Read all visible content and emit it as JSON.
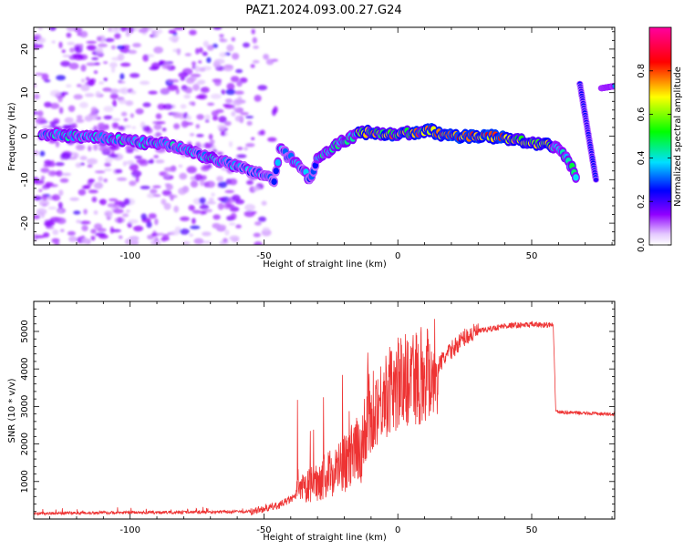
{
  "figure": {
    "title": "PAZ1.2024.093.00.27.G24"
  },
  "chart_data": [
    {
      "type": "heatmap",
      "xlabel": "Height of straight line (km)",
      "ylabel": "Frequency (Hz)",
      "xlim": [
        -136,
        81
      ],
      "ylim": [
        -25,
        25
      ],
      "x_ticks": [
        -100,
        -50,
        0,
        50
      ],
      "y_ticks": [
        -20,
        -10,
        0,
        10,
        20
      ],
      "grid": false,
      "colorbar": {
        "label": "Normalized spectral amplitude",
        "range": [
          0,
          1
        ],
        "ticks": [
          0.0,
          0.2,
          0.4,
          0.6,
          0.8
        ],
        "colormap": [
          "#ffffff",
          "#9000ff",
          "#0000ff",
          "#00e0ff",
          "#00ff00",
          "#ffff00",
          "#ff0000",
          "#ff00a0"
        ]
      },
      "ridge": {
        "x": [
          -133,
          -120,
          -110,
          -100,
          -95,
          -85,
          -80,
          -75,
          -70,
          -65,
          -60,
          -55,
          -50,
          -46,
          -44,
          -40,
          -35,
          -33,
          -30,
          -25,
          -20,
          -15,
          -10,
          -5,
          0,
          5,
          10,
          12,
          15,
          20,
          30,
          40,
          45,
          50,
          55,
          60,
          63,
          65,
          67
        ],
        "y": [
          0.5,
          0,
          -0.5,
          -1,
          -1.5,
          -2,
          -3,
          -4,
          -5,
          -6,
          -7,
          -8,
          -9,
          -10,
          -3,
          -5,
          -8,
          -10,
          -5,
          -3,
          -1,
          0.5,
          1,
          0.5,
          0.5,
          0.8,
          1,
          1.5,
          0.5,
          0,
          0,
          -0.3,
          -1,
          -1.5,
          -2,
          -3,
          -5,
          -7,
          -10
        ]
      },
      "streaks": [
        {
          "x": [
            68,
            74
          ],
          "y": [
            12,
            -10
          ]
        },
        {
          "x": [
            76,
            81
          ],
          "y": [
            11,
            11.5
          ]
        }
      ]
    },
    {
      "type": "line",
      "xlabel": "Height of straight line (km)",
      "ylabel": "SNR (10 * v/v)",
      "xlim": [
        -136,
        81
      ],
      "ylim": [
        0,
        5800
      ],
      "x_ticks": [
        -100,
        -50,
        0,
        50
      ],
      "y_ticks": [
        1000,
        2000,
        3000,
        4000,
        5000
      ],
      "color": "#ee3333",
      "grid": false,
      "envelope": {
        "x": [
          -136,
          -110,
          -80,
          -55,
          -45,
          -38,
          -30,
          -25,
          -20,
          -15,
          -12,
          -10,
          -8,
          -5,
          0,
          5,
          10,
          15,
          20,
          25,
          30,
          40,
          50,
          58,
          59,
          60,
          70,
          81
        ],
        "y": [
          150,
          170,
          180,
          200,
          350,
          600,
          900,
          1100,
          1300,
          1600,
          2000,
          2600,
          3000,
          3300,
          3600,
          3800,
          3900,
          4100,
          4500,
          4850,
          5000,
          5150,
          5180,
          5170,
          2900,
          2850,
          2820,
          2790
        ]
      }
    }
  ]
}
